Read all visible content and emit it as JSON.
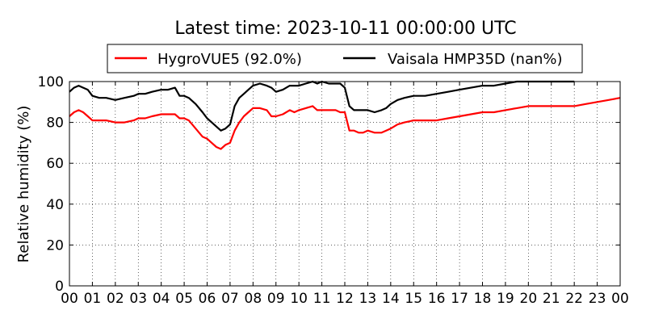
{
  "chart_data": {
    "type": "line",
    "title": "Latest time: 2023-10-11 00:00:00 UTC",
    "xlabel": "",
    "ylabel": "Relative humidity (%)",
    "xlim": [
      0,
      24
    ],
    "ylim": [
      0,
      100
    ],
    "x_ticks": [
      "00",
      "01",
      "02",
      "03",
      "04",
      "05",
      "06",
      "07",
      "08",
      "09",
      "10",
      "11",
      "12",
      "13",
      "14",
      "15",
      "16",
      "17",
      "18",
      "19",
      "20",
      "21",
      "22",
      "23",
      "00"
    ],
    "y_ticks": [
      0,
      20,
      40,
      60,
      80,
      100
    ],
    "grid": true,
    "legend_position": "top-center",
    "series": [
      {
        "name": "HygroVUE5 (92.0%)",
        "color": "#ff0000",
        "x": [
          0,
          0.2,
          0.4,
          0.6,
          0.8,
          1,
          1.3,
          1.6,
          2,
          2.4,
          2.8,
          3,
          3.3,
          3.6,
          4,
          4.3,
          4.6,
          4.8,
          5,
          5.2,
          5.5,
          5.8,
          6,
          6.2,
          6.4,
          6.6,
          6.8,
          7,
          7.2,
          7.4,
          7.6,
          7.8,
          8,
          8.3,
          8.6,
          8.8,
          9,
          9.3,
          9.6,
          9.8,
          10,
          10.3,
          10.6,
          10.8,
          11,
          11.3,
          11.6,
          11.8,
          12,
          12.2,
          12.4,
          12.6,
          12.8,
          13,
          13.3,
          13.6,
          13.8,
          14,
          14.3,
          14.6,
          15,
          15.5,
          16,
          16.5,
          17,
          17.5,
          18,
          18.5,
          19,
          19.5,
          20,
          20.5,
          21,
          21.5,
          22,
          22.5,
          23,
          23.5,
          24
        ],
        "values": [
          83,
          85,
          86,
          85,
          83,
          81,
          81,
          81,
          80,
          80,
          81,
          82,
          82,
          83,
          84,
          84,
          84,
          82,
          82,
          81,
          77,
          73,
          72,
          70,
          68,
          67,
          69,
          70,
          76,
          80,
          83,
          85,
          87,
          87,
          86,
          83,
          83,
          84,
          86,
          85,
          86,
          87,
          88,
          86,
          86,
          86,
          86,
          85,
          85,
          76,
          76,
          75,
          75,
          76,
          75,
          75,
          76,
          77,
          79,
          80,
          81,
          81,
          81,
          82,
          83,
          84,
          85,
          85,
          86,
          87,
          88,
          88,
          88,
          88,
          88,
          89,
          90,
          91,
          92
        ]
      },
      {
        "name": "Vaisala HMP35D (nan%)",
        "color": "#000000",
        "x": [
          0,
          0.2,
          0.4,
          0.6,
          0.8,
          1,
          1.3,
          1.6,
          2,
          2.4,
          2.8,
          3,
          3.3,
          3.6,
          4,
          4.3,
          4.6,
          4.8,
          5,
          5.2,
          5.5,
          5.8,
          6,
          6.2,
          6.4,
          6.6,
          6.8,
          7,
          7.2,
          7.4,
          7.6,
          7.8,
          8,
          8.3,
          8.6,
          8.8,
          9,
          9.3,
          9.6,
          9.8,
          10,
          10.3,
          10.6,
          10.8,
          11,
          11.3,
          11.6,
          11.8,
          12,
          12.2,
          12.4,
          12.6,
          12.8,
          13,
          13.3,
          13.6,
          13.8,
          14,
          14.3,
          14.6,
          15,
          15.5,
          16,
          16.5,
          17,
          17.5,
          18,
          18.5,
          19,
          19.5,
          20,
          20.5,
          21,
          21.5,
          22
        ],
        "values": [
          95,
          97,
          98,
          97,
          96,
          93,
          92,
          92,
          91,
          92,
          93,
          94,
          94,
          95,
          96,
          96,
          97,
          93,
          93,
          92,
          89,
          85,
          82,
          80,
          78,
          76,
          77,
          79,
          88,
          92,
          94,
          96,
          98,
          99,
          98,
          97,
          95,
          96,
          98,
          98,
          98,
          99,
          100,
          99,
          100,
          99,
          99,
          99,
          97,
          88,
          86,
          86,
          86,
          86,
          85,
          86,
          87,
          89,
          91,
          92,
          93,
          93,
          94,
          95,
          96,
          97,
          98,
          98,
          99,
          100,
          100,
          100,
          100,
          100,
          100
        ]
      }
    ]
  }
}
